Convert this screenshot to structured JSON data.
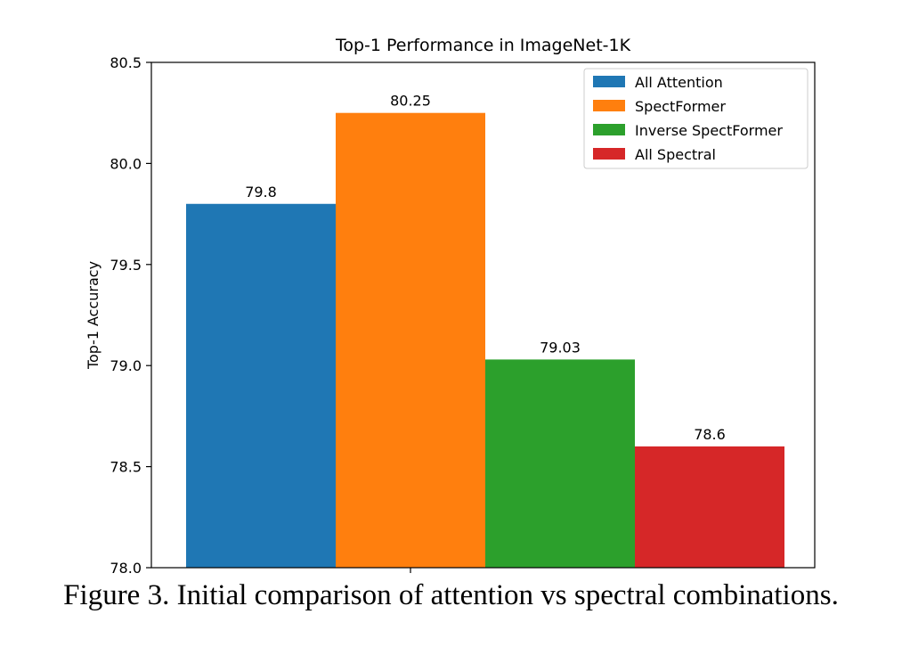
{
  "chart_data": {
    "type": "bar",
    "title": "Top-1 Performance in ImageNet-1K",
    "xlabel": "",
    "ylabel": "Top-1 Accuracy",
    "ylim": [
      78.0,
      80.5
    ],
    "yticks": [
      78.0,
      78.5,
      79.0,
      79.5,
      80.0,
      80.5
    ],
    "ytick_labels": [
      "78.0",
      "78.5",
      "79.0",
      "79.5",
      "80.0",
      "80.5"
    ],
    "grid": false,
    "legend_position": "top-right",
    "series": [
      {
        "name": "All Attention",
        "value": 79.8,
        "label": "79.8",
        "color": "#1f77b4"
      },
      {
        "name": "SpectFormer",
        "value": 80.25,
        "label": "80.25",
        "color": "#ff7f0e"
      },
      {
        "name": "Inverse SpectFormer",
        "value": 79.03,
        "label": "79.03",
        "color": "#2ca02c"
      },
      {
        "name": "All Spectral",
        "value": 78.6,
        "label": "78.6",
        "color": "#d62728"
      }
    ]
  },
  "caption": "Figure 3. Initial comparison of attention vs spectral combinations."
}
